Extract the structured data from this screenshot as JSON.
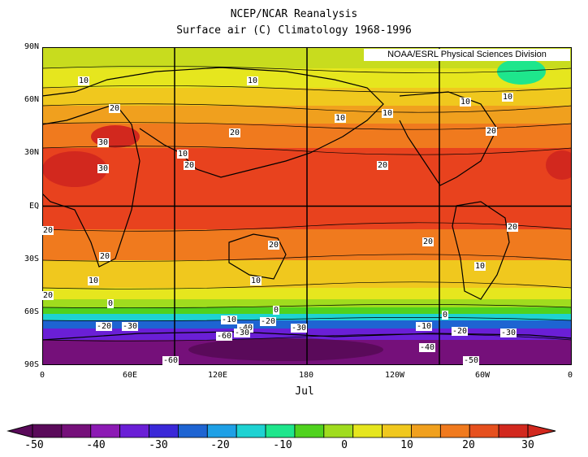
{
  "title": "NCEP/NCAR Reanalysis",
  "subtitle": "Surface air (C) Climatology 1968-1996",
  "credit": "NOAA/ESRL Physical Sciences Division",
  "month": "Jul",
  "y_ticks": [
    "90N",
    "60N",
    "30N",
    "EQ",
    "30S",
    "60S",
    "90S"
  ],
  "x_ticks": [
    "0",
    "60E",
    "120E",
    "180",
    "120W",
    "60W",
    "0"
  ],
  "contour_labels": [
    "10",
    "10",
    "20",
    "30",
    "30",
    "20",
    "10",
    "20",
    "10",
    "20",
    "10",
    "10",
    "10",
    "20",
    "20",
    "20",
    "20",
    "20",
    "20",
    "20",
    "10",
    "10",
    "10",
    "0",
    "0",
    "0",
    "-10",
    "-20",
    "-30",
    "-40",
    "-60",
    "-30",
    "-20",
    "-30",
    "-10",
    "-20",
    "-30",
    "-40",
    "-50",
    "-60"
  ],
  "colorbar": {
    "ticks": [
      "-50",
      "-40",
      "-30",
      "-20",
      "-10",
      "0",
      "10",
      "20",
      "30"
    ],
    "colors": [
      "#5a0a5a",
      "#75107a",
      "#8c1ab4",
      "#6a1fd6",
      "#3a28d8",
      "#1e64d2",
      "#1ea0e6",
      "#1ed2d2",
      "#1ee68c",
      "#50d21e",
      "#a0dc1e",
      "#e6e61e",
      "#f0c81e",
      "#f0a01e",
      "#f07a1e",
      "#e6501e",
      "#d2281e"
    ]
  },
  "legend_colors": {
    "tropics": "#e8421e",
    "subtropics": "#f07a1e",
    "mid": "#f0a01e",
    "temperate": "#f0c81e",
    "cool": "#e6e61e",
    "arctic": "#c8dc1e",
    "cold": "#50d21e",
    "frozen": "#1e64d2",
    "antarctic": "#75107a"
  }
}
